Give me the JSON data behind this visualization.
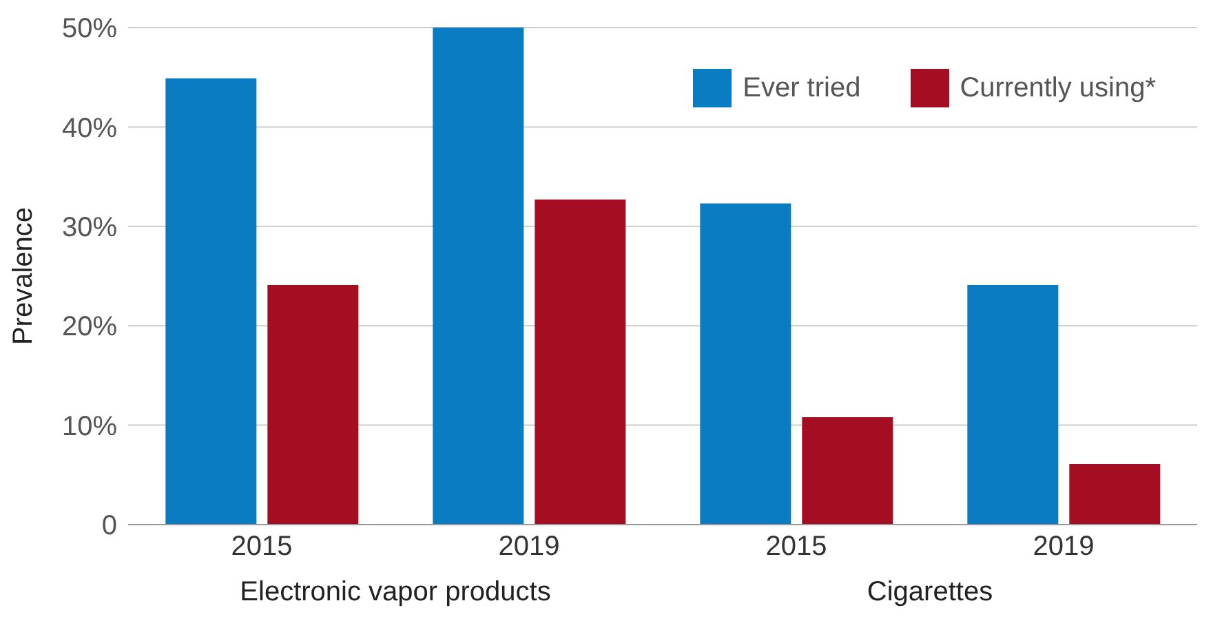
{
  "chart_data": {
    "type": "bar",
    "ylabel": "Prevalence",
    "categories": [
      "2015",
      "2019",
      "2015",
      "2019"
    ],
    "series": [
      {
        "name": "Ever tried",
        "color": "#0a7dc2",
        "values": [
          44.9,
          50,
          32.3,
          24.1
        ]
      },
      {
        "name": "Currently using*",
        "color": "#a50d22",
        "values": [
          24.1,
          32.7,
          10.8,
          6.1
        ]
      }
    ],
    "ylim": [
      0,
      50
    ],
    "yticks": [
      {
        "value": 0,
        "label": "0"
      },
      {
        "value": 10,
        "label": "10%"
      },
      {
        "value": 20,
        "label": "20%"
      },
      {
        "value": 30,
        "label": "30%"
      },
      {
        "value": 40,
        "label": "40%"
      },
      {
        "value": 50,
        "label": "50%"
      }
    ],
    "grid": "y",
    "legend": "top right",
    "annotations": [
      "Electronic vapor products",
      "Cigarettes"
    ]
  }
}
